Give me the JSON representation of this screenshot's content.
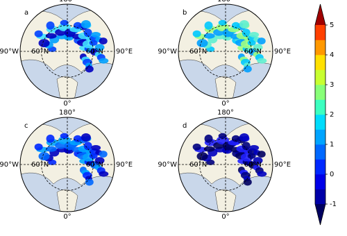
{
  "panels": [
    "a",
    "b",
    "c",
    "d"
  ],
  "map_labels": {
    "top": "180°",
    "left": "90°W",
    "right": "90°E",
    "bottom": "0°",
    "lat": "60°N"
  },
  "colorbar": {
    "lim": [
      -1,
      5
    ],
    "ticks": [
      -1,
      0,
      1,
      2,
      3,
      4,
      5
    ],
    "colors": [
      "#0000a8",
      "#0000e8",
      "#0028ff",
      "#0068ff",
      "#00a4ff",
      "#00dcfc",
      "#3cffc0",
      "#88ff78",
      "#c8ff30",
      "#ffe000",
      "#ff9800",
      "#ff4000"
    ],
    "under": "#000060",
    "over": "#a00000"
  }
}
